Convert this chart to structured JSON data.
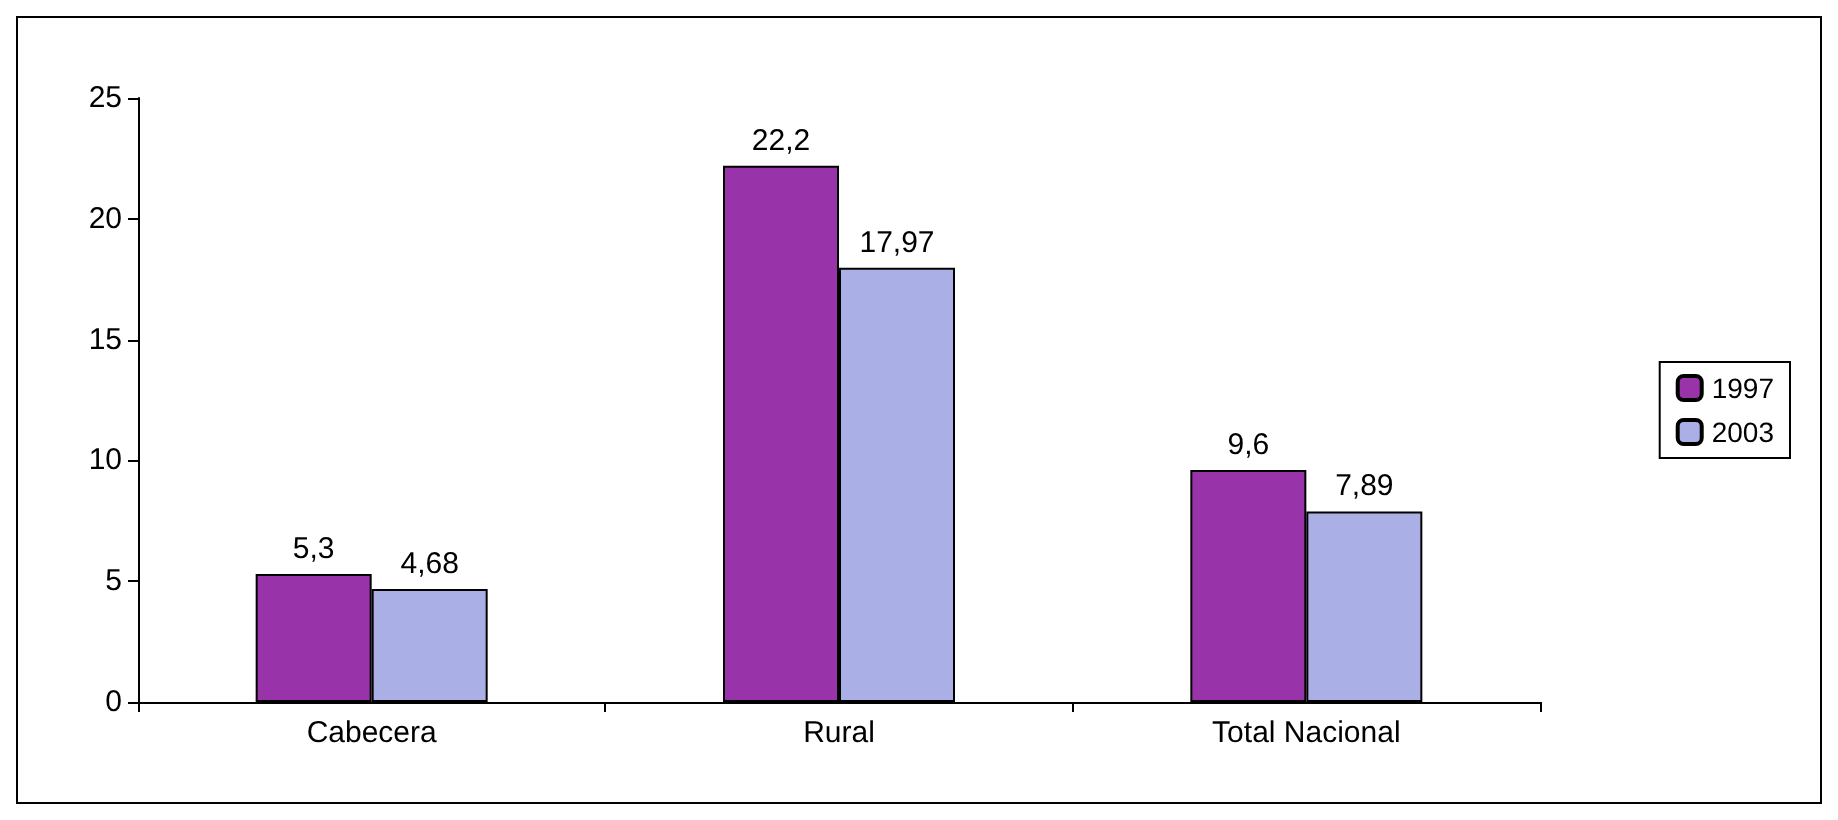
{
  "chart_data": {
    "type": "bar",
    "categories": [
      "Cabecera",
      "Rural",
      "Total Nacional"
    ],
    "series": [
      {
        "name": "1997",
        "color": "#9933aa",
        "values": [
          5.3,
          22.2,
          9.6
        ],
        "value_labels": [
          "5,3",
          "22,2",
          "9,6"
        ]
      },
      {
        "name": "2003",
        "color": "#aab0e6",
        "values": [
          4.68,
          17.97,
          7.89
        ],
        "value_labels": [
          "4,68",
          "17,97",
          "7,89"
        ]
      }
    ],
    "ylim": [
      0,
      25
    ],
    "yticks": [
      0,
      5,
      10,
      15,
      20,
      25
    ],
    "grid": false,
    "legend": "right"
  }
}
